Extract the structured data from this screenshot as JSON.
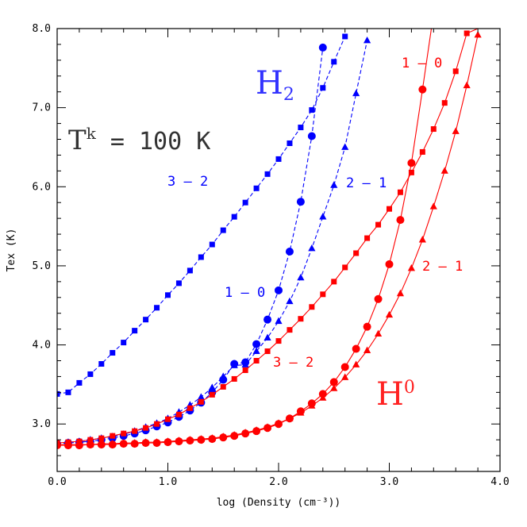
{
  "chart_data": {
    "type": "line",
    "title": "",
    "xlabel": "log (Density (cm⁻³))",
    "ylabel": "Tex (K)",
    "xlim": [
      0,
      4
    ],
    "ylim": [
      2.4,
      8
    ],
    "xticks": [
      "0.0",
      "1.0",
      "2.0",
      "3.0",
      "4.0"
    ],
    "yticks": [
      "3.0",
      "4.0",
      "5.0",
      "6.0",
      "7.0",
      "8.0"
    ],
    "grid": false,
    "legend": "none",
    "annotations": {
      "tk": "T",
      "tk_sup": "k",
      "tk_value": "= 100 K",
      "h2": "H",
      "h2_sub": "2",
      "h0": "H",
      "h0_sup": "0",
      "h2_32": "3 – 2",
      "h2_21": "2 – 1",
      "h2_10": "1 – 0",
      "h0_10": "1 – 0",
      "h0_21": "2 – 1",
      "h0_32": "3 – 2"
    },
    "series": [
      {
        "group": "H2",
        "transition": "3-2",
        "color": "#0000ff",
        "dash": true,
        "marker": "square",
        "x": [
          0.0,
          0.1,
          0.2,
          0.3,
          0.4,
          0.5,
          0.6,
          0.7,
          0.8,
          0.9,
          1.0,
          1.1,
          1.2,
          1.3,
          1.4,
          1.5,
          1.6,
          1.7,
          1.8,
          1.9,
          2.0,
          2.1,
          2.2,
          2.3,
          2.4,
          2.5,
          2.6
        ],
        "y": [
          3.38,
          3.4,
          3.52,
          3.63,
          3.76,
          3.9,
          4.03,
          4.18,
          4.32,
          4.47,
          4.63,
          4.78,
          4.94,
          5.11,
          5.27,
          5.45,
          5.62,
          5.8,
          5.98,
          6.16,
          6.35,
          6.55,
          6.75,
          6.97,
          7.25,
          7.58,
          7.9
        ]
      },
      {
        "group": "H2",
        "transition": "1-0",
        "color": "#0000ff",
        "dash": true,
        "marker": "circle",
        "x": [
          0.0,
          0.1,
          0.2,
          0.3,
          0.4,
          0.5,
          0.6,
          0.7,
          0.8,
          0.9,
          1.0,
          1.1,
          1.2,
          1.3,
          1.4,
          1.5,
          1.6,
          1.7,
          1.8,
          1.9,
          2.0,
          2.1,
          2.2,
          2.3,
          2.4
        ],
        "y": [
          2.75,
          2.76,
          2.77,
          2.78,
          2.8,
          2.82,
          2.85,
          2.88,
          2.92,
          2.97,
          3.02,
          3.09,
          3.17,
          3.27,
          3.4,
          3.56,
          3.76,
          3.78,
          4.01,
          4.32,
          4.69,
          5.18,
          5.81,
          6.64,
          7.76
        ]
      },
      {
        "group": "H2",
        "transition": "2-1",
        "color": "#0000ff",
        "dash": true,
        "marker": "triangle",
        "x": [
          0.0,
          0.1,
          0.2,
          0.3,
          0.4,
          0.5,
          0.6,
          0.7,
          0.8,
          0.9,
          1.0,
          1.1,
          1.2,
          1.3,
          1.4,
          1.5,
          1.6,
          1.7,
          1.8,
          1.9,
          2.0,
          2.1,
          2.2,
          2.3,
          2.4,
          2.5,
          2.6,
          2.7,
          2.8
        ],
        "y": [
          2.76,
          2.77,
          2.78,
          2.8,
          2.82,
          2.84,
          2.87,
          2.91,
          2.96,
          3.01,
          3.07,
          3.15,
          3.24,
          3.34,
          3.46,
          3.6,
          3.74,
          3.75,
          3.92,
          4.09,
          4.3,
          4.55,
          4.85,
          5.22,
          5.62,
          6.02,
          6.5,
          7.18,
          7.85
        ]
      },
      {
        "group": "H0",
        "transition": "3-2",
        "color": "#ff0000",
        "dash": false,
        "marker": "square",
        "x": [
          0.0,
          0.1,
          0.2,
          0.3,
          0.4,
          0.5,
          0.6,
          0.7,
          0.8,
          0.9,
          1.0,
          1.1,
          1.2,
          1.3,
          1.4,
          1.5,
          1.6,
          1.7,
          1.8,
          1.9,
          2.0,
          2.1,
          2.2,
          2.3,
          2.4,
          2.5,
          2.6,
          2.7,
          2.8,
          2.9,
          3.0,
          3.1,
          3.2,
          3.3,
          3.4,
          3.5,
          3.6,
          3.7,
          3.8
        ],
        "y": [
          2.76,
          2.77,
          2.78,
          2.8,
          2.82,
          2.85,
          2.88,
          2.91,
          2.95,
          3.0,
          3.06,
          3.12,
          3.2,
          3.28,
          3.37,
          3.47,
          3.57,
          3.68,
          3.8,
          3.92,
          4.05,
          4.19,
          4.33,
          4.48,
          4.64,
          4.8,
          4.98,
          5.16,
          5.35,
          5.52,
          5.72,
          5.93,
          6.18,
          6.44,
          6.73,
          7.06,
          7.46,
          7.94,
          8.0
        ]
      },
      {
        "group": "H0",
        "transition": "1-0",
        "color": "#ff0000",
        "dash": false,
        "marker": "circle",
        "x": [
          0.0,
          0.1,
          0.2,
          0.3,
          0.4,
          0.5,
          0.6,
          0.7,
          0.8,
          0.9,
          1.0,
          1.1,
          1.2,
          1.3,
          1.4,
          1.5,
          1.6,
          1.7,
          1.8,
          1.9,
          2.0,
          2.1,
          2.2,
          2.3,
          2.4,
          2.5,
          2.6,
          2.7,
          2.8,
          2.9,
          3.0,
          3.1,
          3.2,
          3.3,
          3.38
        ],
        "y": [
          2.73,
          2.73,
          2.73,
          2.74,
          2.74,
          2.74,
          2.75,
          2.75,
          2.76,
          2.76,
          2.77,
          2.78,
          2.79,
          2.8,
          2.81,
          2.83,
          2.85,
          2.88,
          2.91,
          2.95,
          3.0,
          3.07,
          3.16,
          3.26,
          3.38,
          3.53,
          3.72,
          3.95,
          4.23,
          4.58,
          5.02,
          5.58,
          6.3,
          7.23,
          8.0
        ]
      },
      {
        "group": "H0",
        "transition": "2-1",
        "color": "#ff0000",
        "dash": false,
        "marker": "triangle",
        "x": [
          0.0,
          0.1,
          0.2,
          0.3,
          0.4,
          0.5,
          0.6,
          0.7,
          0.8,
          0.9,
          1.0,
          1.1,
          1.2,
          1.3,
          1.4,
          1.5,
          1.6,
          1.7,
          1.8,
          1.9,
          2.0,
          2.1,
          2.2,
          2.3,
          2.4,
          2.5,
          2.6,
          2.7,
          2.8,
          2.9,
          3.0,
          3.1,
          3.2,
          3.3,
          3.4,
          3.5,
          3.6,
          3.7,
          3.8
        ],
        "y": [
          2.74,
          2.74,
          2.74,
          2.74,
          2.75,
          2.75,
          2.76,
          2.76,
          2.77,
          2.77,
          2.78,
          2.79,
          2.8,
          2.81,
          2.82,
          2.84,
          2.86,
          2.89,
          2.92,
          2.96,
          3.01,
          3.07,
          3.14,
          3.23,
          3.33,
          3.45,
          3.59,
          3.75,
          3.93,
          4.14,
          4.38,
          4.65,
          4.97,
          5.33,
          5.75,
          6.2,
          6.7,
          7.28,
          7.92
        ]
      }
    ]
  }
}
